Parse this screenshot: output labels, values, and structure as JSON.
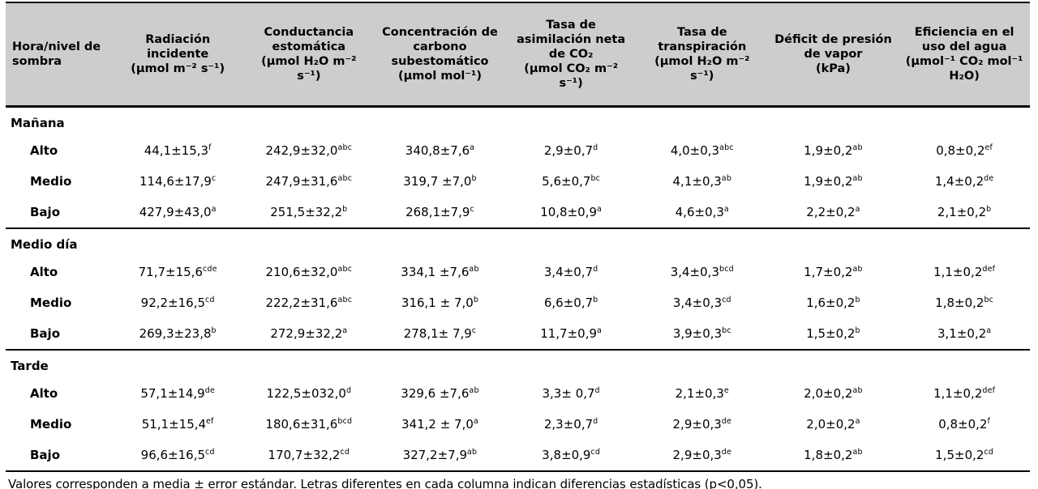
{
  "colors": {
    "header_bg": "#cdcdcd",
    "border": "#000000",
    "text": "#000000",
    "page_bg": "#ffffff"
  },
  "table": {
    "columns": [
      {
        "title": "Hora/nivel de sombra",
        "unit": ""
      },
      {
        "title": "Radiación incidente",
        "unit": "(µmol m⁻² s⁻¹)"
      },
      {
        "title": "Conductancia estomática",
        "unit": "(µmol H₂O m⁻² s⁻¹)"
      },
      {
        "title": "Concentración de carbono subestomático",
        "unit": "(µmol mol⁻¹)"
      },
      {
        "title": "Tasa de asimilación neta de CO₂",
        "unit": "(µmol CO₂ m⁻² s⁻¹)"
      },
      {
        "title": "Tasa de transpiración",
        "unit": "(µmol H₂O m⁻² s⁻¹)"
      },
      {
        "title": "Déficit de presión de vapor",
        "unit": "(kPa)"
      },
      {
        "title": "Eficiencia en el uso del agua",
        "unit": "(µmol⁻¹ CO₂ mol⁻¹ H₂O)"
      }
    ],
    "sections": [
      {
        "name": "Mañana",
        "rows": [
          {
            "label": "Alto",
            "values": [
              {
                "v": "44,1±15,3",
                "sup": "f"
              },
              {
                "v": "242,9±32,0",
                "sup": "abc"
              },
              {
                "v": "340,8±7,6",
                "sup": "a"
              },
              {
                "v": "2,9±0,7",
                "sup": "d"
              },
              {
                "v": "4,0±0,3",
                "sup": "abc"
              },
              {
                "v": "1,9±0,2",
                "sup": "ab"
              },
              {
                "v": "0,8±0,2",
                "sup": "ef"
              }
            ]
          },
          {
            "label": "Medio",
            "values": [
              {
                "v": "114,6±17,9",
                "sup": "c"
              },
              {
                "v": "247,9±31,6",
                "sup": "abc"
              },
              {
                "v": "319,7 ±7,0",
                "sup": "b"
              },
              {
                "v": "5,6±0,7",
                "sup": "bc"
              },
              {
                "v": "4,1±0,3",
                "sup": "ab"
              },
              {
                "v": "1,9±0,2",
                "sup": "ab"
              },
              {
                "v": "1,4±0,2",
                "sup": "de"
              }
            ]
          },
          {
            "label": "Bajo",
            "values": [
              {
                "v": "427,9±43,0",
                "sup": "a"
              },
              {
                "v": "251,5±32,2",
                "sup": "b"
              },
              {
                "v": "268,1±7,9",
                "sup": "c"
              },
              {
                "v": "10,8±0,9",
                "sup": "a"
              },
              {
                "v": "4,6±0,3",
                "sup": "a"
              },
              {
                "v": "2,2±0,2",
                "sup": "a"
              },
              {
                "v": "2,1±0,2",
                "sup": "b"
              }
            ]
          }
        ]
      },
      {
        "name": "Medio día",
        "rows": [
          {
            "label": "Alto",
            "values": [
              {
                "v": "71,7±15,6",
                "sup": "cde"
              },
              {
                "v": "210,6±32,0",
                "sup": "abc"
              },
              {
                "v": "334,1 ±7,6",
                "sup": "ab"
              },
              {
                "v": "3,4±0,7",
                "sup": "d"
              },
              {
                "v": "3,4±0,3",
                "sup": "bcd"
              },
              {
                "v": "1,7±0,2",
                "sup": "ab"
              },
              {
                "v": "1,1±0,2",
                "sup": "def"
              }
            ]
          },
          {
            "label": "Medio",
            "values": [
              {
                "v": "92,2±16,5",
                "sup": "cd"
              },
              {
                "v": "222,2±31,6",
                "sup": "abc"
              },
              {
                "v": "316,1 ± 7,0",
                "sup": "b"
              },
              {
                "v": "6,6±0,7",
                "sup": "b"
              },
              {
                "v": "3,4±0,3",
                "sup": "cd"
              },
              {
                "v": "1,6±0,2",
                "sup": "b"
              },
              {
                "v": "1,8±0,2",
                "sup": "bc"
              }
            ]
          },
          {
            "label": "Bajo",
            "values": [
              {
                "v": "269,3±23,8",
                "sup": "b"
              },
              {
                "v": "272,9±32,2",
                "sup": "a"
              },
              {
                "v": "278,1± 7,9",
                "sup": "c"
              },
              {
                "v": "11,7±0,9",
                "sup": "a"
              },
              {
                "v": "3,9±0,3",
                "sup": "bc"
              },
              {
                "v": "1,5±0,2",
                "sup": "b"
              },
              {
                "v": "3,1±0,2",
                "sup": "a"
              }
            ]
          }
        ]
      },
      {
        "name": "Tarde",
        "rows": [
          {
            "label": "Alto",
            "values": [
              {
                "v": "57,1±14,9",
                "sup": "de"
              },
              {
                "v": "122,5±032,0",
                "sup": "d"
              },
              {
                "v": "329,6 ±7,6",
                "sup": "ab"
              },
              {
                "v": "3,3± 0,7",
                "sup": "d"
              },
              {
                "v": "2,1±0,3",
                "sup": "e"
              },
              {
                "v": "2,0±0,2",
                "sup": "ab"
              },
              {
                "v": "1,1±0,2",
                "sup": "def"
              }
            ]
          },
          {
            "label": "Medio",
            "values": [
              {
                "v": "51,1±15,4",
                "sup": "ef"
              },
              {
                "v": "180,6±31,6",
                "sup": "bcd"
              },
              {
                "v": "341,2 ± 7,0",
                "sup": "a"
              },
              {
                "v": "2,3±0,7",
                "sup": "d"
              },
              {
                "v": "2,9±0,3",
                "sup": "de"
              },
              {
                "v": "2,0±0,2",
                "sup": "a"
              },
              {
                "v": "0,8±0,2",
                "sup": "f"
              }
            ]
          },
          {
            "label": "Bajo",
            "values": [
              {
                "v": "96,6±16,5",
                "sup": "cd"
              },
              {
                "v": "170,7±32,2",
                "sup": "cd"
              },
              {
                "v": "327,2±7,9",
                "sup": "ab"
              },
              {
                "v": "3,8±0,9",
                "sup": "cd"
              },
              {
                "v": "2,9±0,3",
                "sup": "de"
              },
              {
                "v": "1,8±0,2",
                "sup": "ab"
              },
              {
                "v": "1,5±0,2",
                "sup": "cd"
              }
            ]
          }
        ]
      }
    ],
    "footnote": "Valores corresponden a media ± error estándar. Letras diferentes en cada columna indican diferencias estadísticas (p<0,05)."
  }
}
